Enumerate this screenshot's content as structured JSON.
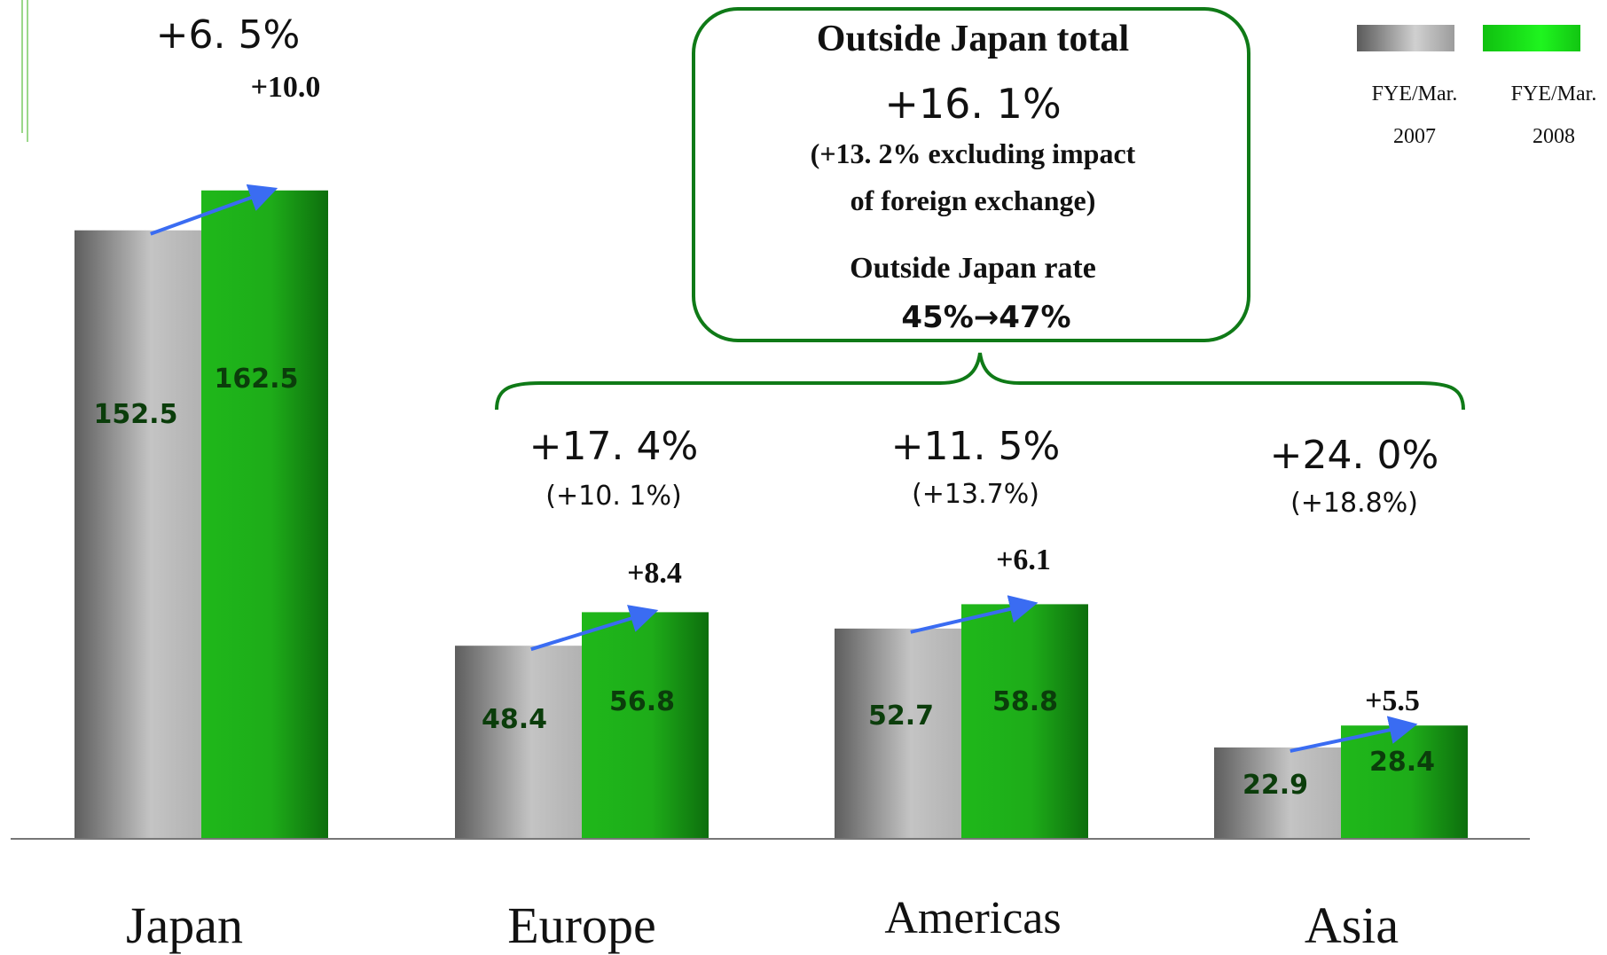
{
  "chart_data": {
    "type": "bar",
    "categories": [
      "Japan",
      "Europe",
      "Americas",
      "Asia"
    ],
    "series": [
      {
        "name": "FYE/Mar. 2007",
        "values": [
          152.5,
          48.4,
          52.7,
          22.9
        ]
      },
      {
        "name": "FYE/Mar. 2008",
        "values": [
          162.5,
          56.8,
          58.8,
          28.4
        ]
      }
    ],
    "differences": [
      "+10.0",
      "+8.4",
      "+6.1",
      "+5.5"
    ],
    "growth_rates": [
      "+6. 5%",
      "+17. 4%",
      "+11. 5%",
      "+24. 0%"
    ],
    "growth_rates_excl_fx": [
      "",
      "(+10. 1%)",
      "(+13.7%)",
      "(+18.8%)"
    ],
    "legend": {
      "position": "top-right",
      "entries": [
        {
          "line1": "FYE/Mar.",
          "line2": "2007"
        },
        {
          "line1": "FYE/Mar.",
          "line2": "2008"
        }
      ]
    },
    "colors": {
      "series_2007": "#b4b4b4",
      "series_2008": "#1fb01b",
      "arrow": "#3a6cf2",
      "callout": "#0f7a17",
      "value_label": "#0b3d0b"
    },
    "ylim": [
      0,
      200
    ],
    "grid": false
  },
  "callout": {
    "title": "Outside Japan total",
    "growth": "+16. 1%",
    "excl_line1": "(+13. 2% excluding impact",
    "excl_line2": "of foreign exchange)",
    "rate_label": "Outside Japan rate",
    "rate_value": "45%→47%"
  }
}
